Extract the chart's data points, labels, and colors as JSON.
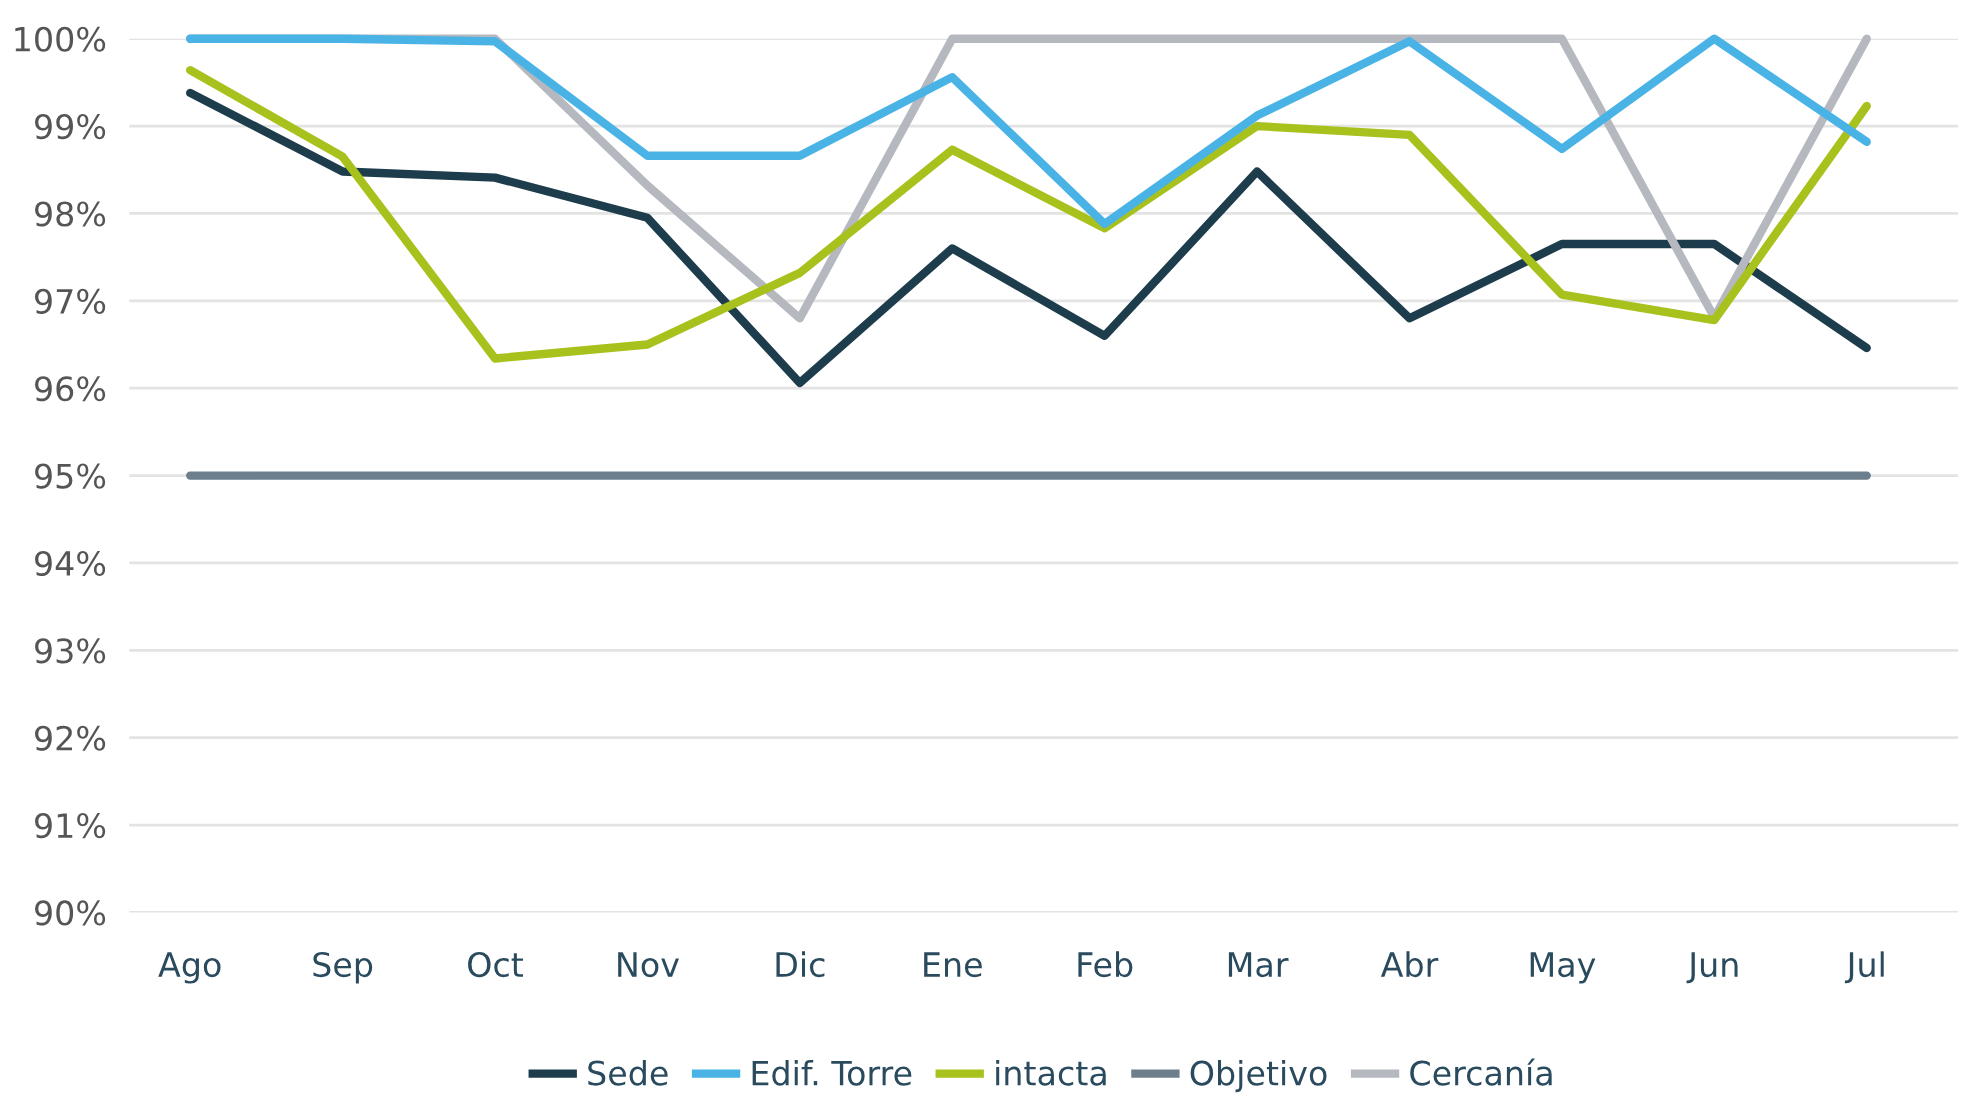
{
  "chart_data": {
    "type": "line",
    "categories": [
      "Ago",
      "Sep",
      "Oct",
      "Nov",
      "Dic",
      "Ene",
      "Feb",
      "Mar",
      "Abr",
      "May",
      "Jun",
      "Jul"
    ],
    "series": [
      {
        "name": "Sede",
        "color": "#1e3d4c",
        "values": [
          99.38,
          98.48,
          98.41,
          97.95,
          96.06,
          97.6,
          96.6,
          98.48,
          96.8,
          97.65,
          97.65,
          96.46
        ]
      },
      {
        "name": "Edif. Torre",
        "color": "#4ab3e6",
        "values": [
          100,
          100,
          99.97,
          98.66,
          98.66,
          99.56,
          97.88,
          99.12,
          99.97,
          98.74,
          100,
          98.82
        ]
      },
      {
        "name": "intacta",
        "color": "#a9c11c",
        "values": [
          99.64,
          98.65,
          96.34,
          96.5,
          97.32,
          98.73,
          97.83,
          99.0,
          98.9,
          97.07,
          96.78,
          99.23
        ]
      },
      {
        "name": "Objetivo",
        "color": "#6d7f8c",
        "values": [
          95,
          95,
          95,
          95,
          95,
          95,
          95,
          95,
          95,
          95,
          95,
          95
        ]
      },
      {
        "name": "Cercanía",
        "color": "#b5b8bf",
        "values": [
          100,
          100,
          100,
          98.32,
          96.8,
          100,
          100,
          100,
          100,
          100,
          96.81,
          100
        ]
      }
    ],
    "ylim": [
      90,
      100
    ],
    "yticks": [
      {
        "value": 90,
        "label": "90%"
      },
      {
        "value": 91,
        "label": "91%"
      },
      {
        "value": 92,
        "label": "92%"
      },
      {
        "value": 93,
        "label": "93%"
      },
      {
        "value": 94,
        "label": "94%"
      },
      {
        "value": 95,
        "label": "95%"
      },
      {
        "value": 96,
        "label": "96%"
      },
      {
        "value": 97,
        "label": "97%"
      },
      {
        "value": 98,
        "label": "98%"
      },
      {
        "value": 99,
        "label": "99%"
      },
      {
        "value": 100,
        "label": "100%"
      }
    ],
    "grid": "y",
    "legend": "bottom",
    "marker": "none",
    "line_style": "solid"
  }
}
